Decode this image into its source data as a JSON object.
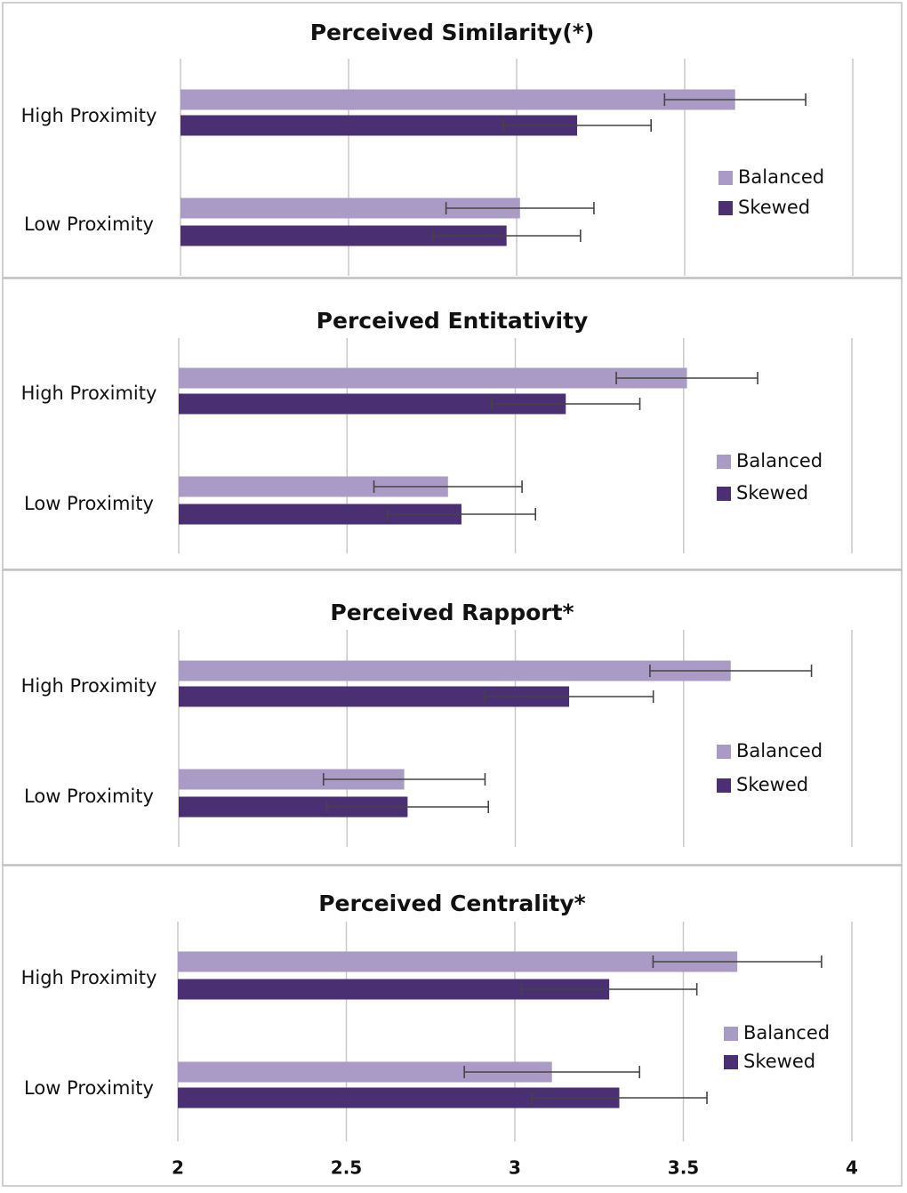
{
  "chart_data": [
    {
      "type": "bar",
      "orientation": "horizontal",
      "title": "Perceived Similarity(*)",
      "categories": [
        "High Proximity",
        "Low Proximity"
      ],
      "series": [
        {
          "name": "Balanced",
          "values": [
            3.65,
            3.01
          ],
          "error": [
            0.21,
            0.22
          ]
        },
        {
          "name": "Skewed",
          "values": [
            3.18,
            2.97
          ],
          "error": [
            0.22,
            0.22
          ]
        }
      ],
      "xlim": [
        2,
        4
      ],
      "xticks": [
        2,
        2.5,
        3,
        3.5,
        4
      ],
      "grid": true,
      "legend": "right"
    },
    {
      "type": "bar",
      "orientation": "horizontal",
      "title": "Perceived Entitativity",
      "categories": [
        "High Proximity",
        "Low Proximity"
      ],
      "series": [
        {
          "name": "Balanced",
          "values": [
            3.51,
            2.8
          ],
          "error": [
            0.21,
            0.22
          ]
        },
        {
          "name": "Skewed",
          "values": [
            3.15,
            2.84
          ],
          "error": [
            0.22,
            0.22
          ]
        }
      ],
      "xlim": [
        2,
        4
      ],
      "xticks": [
        2,
        2.5,
        3,
        3.5,
        4
      ],
      "grid": true,
      "legend": "right"
    },
    {
      "type": "bar",
      "orientation": "horizontal",
      "title": "Perceived Rapport*",
      "categories": [
        "High Proximity",
        "Low Proximity"
      ],
      "series": [
        {
          "name": "Balanced",
          "values": [
            3.64,
            2.67
          ],
          "error": [
            0.24,
            0.24
          ]
        },
        {
          "name": "Skewed",
          "values": [
            3.16,
            2.68
          ],
          "error": [
            0.25,
            0.24
          ]
        }
      ],
      "xlim": [
        2,
        4
      ],
      "xticks": [
        2,
        2.5,
        3,
        3.5,
        4
      ],
      "grid": true,
      "legend": "right"
    },
    {
      "type": "bar",
      "orientation": "horizontal",
      "title": "Perceived Centrality*",
      "categories": [
        "High Proximity",
        "Low Proximity"
      ],
      "series": [
        {
          "name": "Balanced",
          "values": [
            3.66,
            3.11
          ],
          "error": [
            0.25,
            0.26
          ]
        },
        {
          "name": "Skewed",
          "values": [
            3.28,
            3.31
          ],
          "error": [
            0.26,
            0.26
          ]
        }
      ],
      "xlim": [
        2,
        4
      ],
      "xticks": [
        2,
        2.5,
        3,
        3.5,
        4
      ],
      "xtick_labels": [
        "2",
        "2.5",
        "3",
        "3.5",
        "4"
      ],
      "grid": true,
      "legend": "right"
    }
  ],
  "colors": {
    "balanced": "#aa9bc6",
    "skewed": "#4b2f73",
    "gridline": "#c9c9c9",
    "panel_border": "#c0c0c0",
    "error_bar": "#444444"
  }
}
